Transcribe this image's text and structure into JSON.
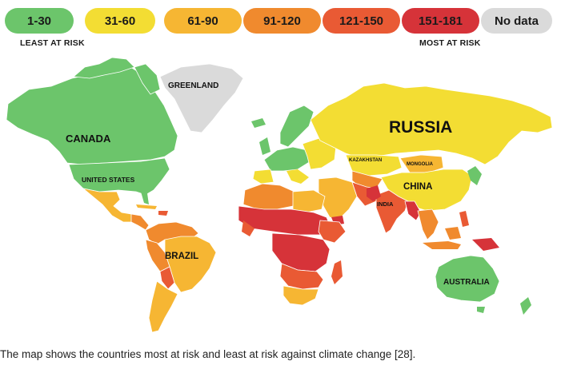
{
  "legend": {
    "bins": [
      {
        "label": "1-30",
        "color": "#6cc56b"
      },
      {
        "label": "31-60",
        "color": "#f3dd33"
      },
      {
        "label": "61-90",
        "color": "#f6b633"
      },
      {
        "label": "91-120",
        "color": "#f08a2e"
      },
      {
        "label": "121-150",
        "color": "#e95a34"
      },
      {
        "label": "151-181",
        "color": "#d63339"
      },
      {
        "label": "No data",
        "color": "#dadada"
      }
    ],
    "least_label": "LEAST AT RISK",
    "most_label": "MOST AT RISK"
  },
  "map": {
    "labels": {
      "canada": "CANADA",
      "united_states": "UNITED STATES",
      "greenland": "GREENLAND",
      "russia": "RUSSIA",
      "kazakhstan": "KAZAKHSTAN",
      "mongolia": "MONGOLIA",
      "china": "CHINA",
      "india": "INDIA",
      "brazil": "BRAZIL",
      "australia": "AUSTRALIA"
    }
  },
  "caption": "The map shows the countries most at risk and least at risk against climate change [28]."
}
